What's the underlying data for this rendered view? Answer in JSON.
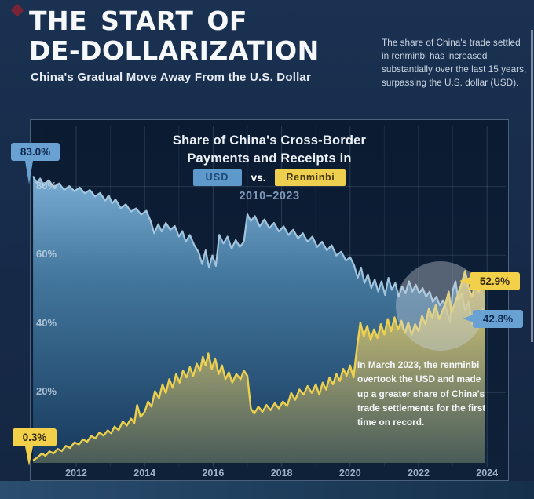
{
  "header": {
    "title_line1": "THE START OF",
    "title_line2": "DE-DOLLARIZATION",
    "subtitle": "China's Gradual Move Away From the U.S. Dollar",
    "note": "The share of China's trade settled in renminbi has increased substantially over the last 15 years, surpassing the U.S. dollar (USD)."
  },
  "chart_data": {
    "type": "area",
    "title_line1": "Share of China's Cross-Border",
    "title_line2": "Payments and Receipts in",
    "vs_label": "vs.",
    "period": "2010–2023",
    "legend": [
      "USD",
      "Renminbi"
    ],
    "legend_position": "top-center",
    "grid": true,
    "xlim": [
      2010.7,
      2024.05
    ],
    "ylim": [
      0,
      100
    ],
    "x_ticks": [
      2012,
      2014,
      2016,
      2018,
      2020,
      2022,
      2024
    ],
    "y_tick_values": [
      20,
      40,
      60,
      80
    ],
    "y_tick_labels": [
      "20%",
      "40%",
      "60%",
      "80%"
    ],
    "annotation": "In March 2023, the renminbi overtook the USD and made up a greater share of China's trade settlements for the first time on record.",
    "callouts": {
      "usd_start": "83.0%",
      "rmb_start": "0.3%",
      "rmb_end": "52.9%",
      "usd_end": "42.8%"
    },
    "colors": {
      "usd_badge": "#5d99cb",
      "rmb_badge": "#efd04e",
      "usd_line": "#a9cbe3",
      "rmb_line": "#f4d54d",
      "panel_bg": "#0b1b32",
      "page_bg": "#172b4a",
      "highlight_circle": "rgba(206,213,223,0.38)"
    },
    "series": [
      {
        "name": "USD",
        "line_color": "#a9cbe3",
        "points": [
          [
            2010.74,
            83.0
          ],
          [
            2010.85,
            81.0
          ],
          [
            2010.95,
            82.3
          ],
          [
            2011.05,
            80.3
          ],
          [
            2011.2,
            81.8
          ],
          [
            2011.35,
            79.8
          ],
          [
            2011.5,
            80.9
          ],
          [
            2011.65,
            79.0
          ],
          [
            2011.8,
            80.1
          ],
          [
            2011.95,
            78.6
          ],
          [
            2012.1,
            79.7
          ],
          [
            2012.25,
            78.0
          ],
          [
            2012.4,
            79.0
          ],
          [
            2012.55,
            77.1
          ],
          [
            2012.7,
            78.1
          ],
          [
            2012.85,
            75.9
          ],
          [
            2012.95,
            77.4
          ],
          [
            2013.05,
            75.1
          ],
          [
            2013.15,
            76.2
          ],
          [
            2013.3,
            73.7
          ],
          [
            2013.45,
            74.8
          ],
          [
            2013.6,
            72.7
          ],
          [
            2013.75,
            73.6
          ],
          [
            2013.9,
            71.8
          ],
          [
            2014.05,
            72.9
          ],
          [
            2014.18,
            69.8
          ],
          [
            2014.28,
            66.4
          ],
          [
            2014.4,
            69.0
          ],
          [
            2014.5,
            66.9
          ],
          [
            2014.62,
            69.4
          ],
          [
            2014.75,
            67.4
          ],
          [
            2014.88,
            68.5
          ],
          [
            2015.0,
            65.4
          ],
          [
            2015.1,
            67.0
          ],
          [
            2015.2,
            63.9
          ],
          [
            2015.32,
            65.9
          ],
          [
            2015.45,
            62.9
          ],
          [
            2015.58,
            60.8
          ],
          [
            2015.68,
            57.4
          ],
          [
            2015.78,
            61.4
          ],
          [
            2015.88,
            56.4
          ],
          [
            2015.98,
            59.9
          ],
          [
            2016.08,
            56.9
          ],
          [
            2016.18,
            65.9
          ],
          [
            2016.3,
            63.4
          ],
          [
            2016.42,
            65.4
          ],
          [
            2016.54,
            61.9
          ],
          [
            2016.66,
            64.4
          ],
          [
            2016.78,
            62.4
          ],
          [
            2016.9,
            63.9
          ],
          [
            2017.0,
            71.9
          ],
          [
            2017.1,
            69.9
          ],
          [
            2017.22,
            71.4
          ],
          [
            2017.36,
            68.4
          ],
          [
            2017.5,
            70.4
          ],
          [
            2017.64,
            67.9
          ],
          [
            2017.78,
            69.4
          ],
          [
            2017.92,
            66.9
          ],
          [
            2018.06,
            68.4
          ],
          [
            2018.2,
            65.9
          ],
          [
            2018.34,
            67.4
          ],
          [
            2018.48,
            64.9
          ],
          [
            2018.62,
            66.4
          ],
          [
            2018.76,
            63.9
          ],
          [
            2018.9,
            65.4
          ],
          [
            2019.04,
            62.4
          ],
          [
            2019.18,
            63.9
          ],
          [
            2019.32,
            61.4
          ],
          [
            2019.46,
            62.9
          ],
          [
            2019.6,
            59.9
          ],
          [
            2019.74,
            61.0
          ],
          [
            2019.88,
            58.4
          ],
          [
            2020.0,
            59.4
          ],
          [
            2020.12,
            57.0
          ],
          [
            2020.22,
            53.4
          ],
          [
            2020.32,
            56.4
          ],
          [
            2020.42,
            51.9
          ],
          [
            2020.52,
            54.4
          ],
          [
            2020.62,
            50.4
          ],
          [
            2020.72,
            52.9
          ],
          [
            2020.82,
            49.4
          ],
          [
            2020.92,
            52.4
          ],
          [
            2021.02,
            48.4
          ],
          [
            2021.12,
            53.4
          ],
          [
            2021.22,
            49.9
          ],
          [
            2021.32,
            51.9
          ],
          [
            2021.42,
            47.9
          ],
          [
            2021.52,
            50.9
          ],
          [
            2021.62,
            48.9
          ],
          [
            2021.72,
            52.4
          ],
          [
            2021.82,
            49.4
          ],
          [
            2021.92,
            51.4
          ],
          [
            2022.02,
            48.9
          ],
          [
            2022.12,
            50.4
          ],
          [
            2022.22,
            47.9
          ],
          [
            2022.32,
            49.4
          ],
          [
            2022.42,
            46.4
          ],
          [
            2022.52,
            47.9
          ],
          [
            2022.62,
            45.4
          ],
          [
            2022.72,
            46.9
          ],
          [
            2022.82,
            43.9
          ],
          [
            2022.92,
            40.4
          ],
          [
            2023.0,
            49.9
          ],
          [
            2023.08,
            52.4
          ],
          [
            2023.16,
            46.9
          ],
          [
            2023.26,
            48.9
          ],
          [
            2023.36,
            43.9
          ],
          [
            2023.46,
            46.4
          ],
          [
            2023.56,
            39.9
          ],
          [
            2023.66,
            43.4
          ],
          [
            2023.76,
            40.9
          ],
          [
            2023.86,
            44.4
          ],
          [
            2023.95,
            42.8
          ]
        ]
      },
      {
        "name": "Renminbi",
        "line_color": "#f4d54d",
        "points": [
          [
            2010.74,
            0.3
          ],
          [
            2010.88,
            1.2
          ],
          [
            2011.0,
            2.3
          ],
          [
            2011.1,
            1.6
          ],
          [
            2011.22,
            2.9
          ],
          [
            2011.34,
            2.3
          ],
          [
            2011.46,
            3.6
          ],
          [
            2011.58,
            3.0
          ],
          [
            2011.7,
            4.5
          ],
          [
            2011.82,
            3.9
          ],
          [
            2011.95,
            5.5
          ],
          [
            2012.08,
            4.9
          ],
          [
            2012.2,
            6.4
          ],
          [
            2012.32,
            5.7
          ],
          [
            2012.44,
            7.4
          ],
          [
            2012.56,
            6.7
          ],
          [
            2012.68,
            8.4
          ],
          [
            2012.8,
            7.5
          ],
          [
            2012.92,
            9.0
          ],
          [
            2013.02,
            8.2
          ],
          [
            2013.12,
            10.1
          ],
          [
            2013.24,
            9.1
          ],
          [
            2013.36,
            11.6
          ],
          [
            2013.48,
            10.4
          ],
          [
            2013.6,
            12.4
          ],
          [
            2013.7,
            11.2
          ],
          [
            2013.78,
            16.4
          ],
          [
            2013.88,
            12.9
          ],
          [
            2014.0,
            14.4
          ],
          [
            2014.1,
            17.4
          ],
          [
            2014.2,
            15.9
          ],
          [
            2014.3,
            20.4
          ],
          [
            2014.42,
            18.4
          ],
          [
            2014.52,
            22.4
          ],
          [
            2014.62,
            19.9
          ],
          [
            2014.72,
            23.9
          ],
          [
            2014.82,
            21.4
          ],
          [
            2014.92,
            25.4
          ],
          [
            2015.02,
            22.9
          ],
          [
            2015.12,
            26.4
          ],
          [
            2015.22,
            24.4
          ],
          [
            2015.32,
            27.4
          ],
          [
            2015.42,
            24.9
          ],
          [
            2015.52,
            28.4
          ],
          [
            2015.62,
            26.4
          ],
          [
            2015.7,
            30.4
          ],
          [
            2015.78,
            27.9
          ],
          [
            2015.86,
            31.4
          ],
          [
            2015.96,
            26.9
          ],
          [
            2016.06,
            29.9
          ],
          [
            2016.16,
            25.4
          ],
          [
            2016.26,
            27.9
          ],
          [
            2016.36,
            23.9
          ],
          [
            2016.46,
            25.9
          ],
          [
            2016.56,
            22.9
          ],
          [
            2016.68,
            25.4
          ],
          [
            2016.8,
            23.9
          ],
          [
            2016.9,
            26.4
          ],
          [
            2017.0,
            24.9
          ],
          [
            2017.1,
            15.4
          ],
          [
            2017.2,
            13.9
          ],
          [
            2017.32,
            15.9
          ],
          [
            2017.44,
            14.4
          ],
          [
            2017.56,
            16.4
          ],
          [
            2017.68,
            14.9
          ],
          [
            2017.8,
            16.9
          ],
          [
            2017.92,
            15.4
          ],
          [
            2018.04,
            17.4
          ],
          [
            2018.16,
            16.1
          ],
          [
            2018.28,
            19.9
          ],
          [
            2018.4,
            17.9
          ],
          [
            2018.52,
            20.9
          ],
          [
            2018.64,
            19.4
          ],
          [
            2018.76,
            21.9
          ],
          [
            2018.88,
            19.9
          ],
          [
            2019.0,
            22.4
          ],
          [
            2019.1,
            19.4
          ],
          [
            2019.2,
            22.9
          ],
          [
            2019.3,
            20.9
          ],
          [
            2019.4,
            24.4
          ],
          [
            2019.5,
            22.4
          ],
          [
            2019.6,
            25.4
          ],
          [
            2019.7,
            23.4
          ],
          [
            2019.8,
            26.9
          ],
          [
            2019.9,
            24.9
          ],
          [
            2020.0,
            27.9
          ],
          [
            2020.1,
            24.4
          ],
          [
            2020.2,
            32.9
          ],
          [
            2020.3,
            40.4
          ],
          [
            2020.4,
            36.4
          ],
          [
            2020.5,
            39.4
          ],
          [
            2020.6,
            35.4
          ],
          [
            2020.7,
            38.4
          ],
          [
            2020.8,
            35.9
          ],
          [
            2020.9,
            39.9
          ],
          [
            2021.0,
            36.9
          ],
          [
            2021.1,
            41.4
          ],
          [
            2021.2,
            37.9
          ],
          [
            2021.3,
            41.9
          ],
          [
            2021.4,
            38.4
          ],
          [
            2021.5,
            40.9
          ],
          [
            2021.6,
            37.4
          ],
          [
            2021.7,
            40.4
          ],
          [
            2021.8,
            36.9
          ],
          [
            2021.9,
            39.9
          ],
          [
            2022.0,
            37.9
          ],
          [
            2022.1,
            42.4
          ],
          [
            2022.2,
            39.9
          ],
          [
            2022.3,
            44.4
          ],
          [
            2022.4,
            41.9
          ],
          [
            2022.5,
            45.4
          ],
          [
            2022.6,
            41.4
          ],
          [
            2022.7,
            43.9
          ],
          [
            2022.8,
            46.4
          ],
          [
            2022.88,
            49.4
          ],
          [
            2022.96,
            43.4
          ],
          [
            2023.06,
            45.9
          ],
          [
            2023.16,
            48.9
          ],
          [
            2023.26,
            51.9
          ],
          [
            2023.36,
            55.4
          ],
          [
            2023.46,
            50.4
          ],
          [
            2023.56,
            47.9
          ],
          [
            2023.66,
            51.9
          ],
          [
            2023.76,
            49.4
          ],
          [
            2023.86,
            53.9
          ],
          [
            2023.95,
            52.9
          ]
        ]
      }
    ]
  }
}
